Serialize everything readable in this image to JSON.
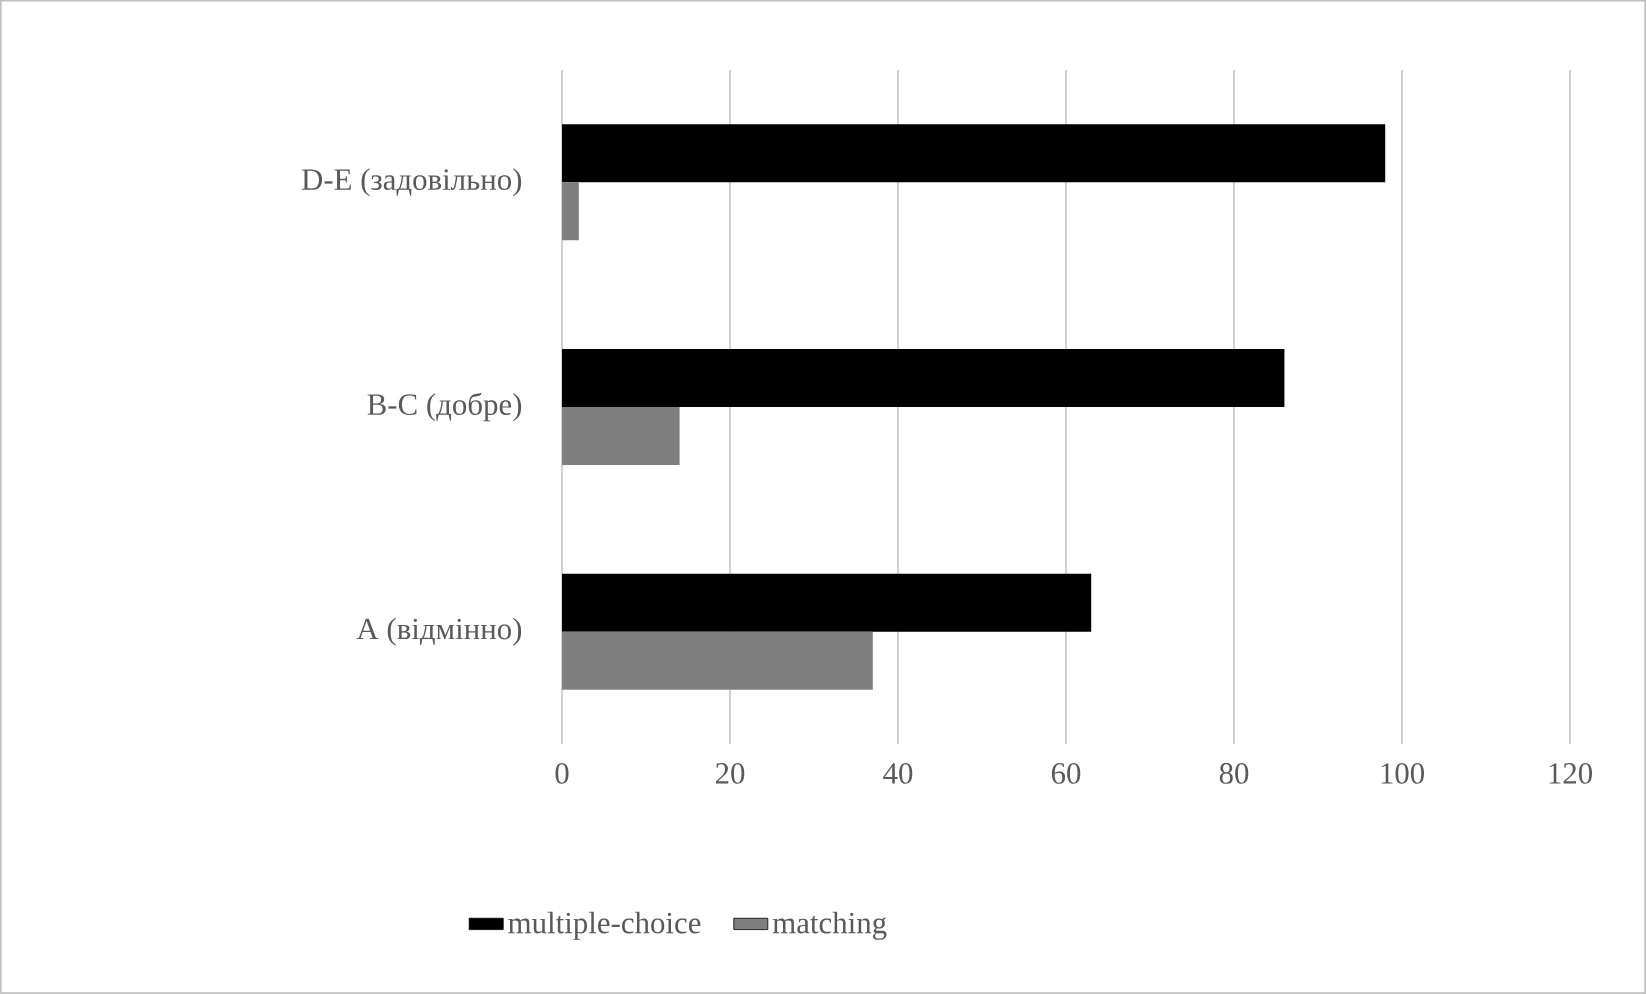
{
  "chart_data": {
    "type": "bar",
    "orientation": "horizontal",
    "categories": [
      "D-E (задовільно)",
      "B-C (добре)",
      "A (відмінно)"
    ],
    "series": [
      {
        "name": "multiple-choice",
        "color": "#000000",
        "values": [
          98,
          86,
          63
        ]
      },
      {
        "name": "matching",
        "color": "#7f7f7f",
        "values": [
          2,
          14,
          37
        ]
      }
    ],
    "xlim": [
      0,
      120
    ],
    "xticks": [
      0,
      20,
      40,
      60,
      80,
      100,
      120
    ],
    "grid": "x",
    "legend": "bottom"
  }
}
